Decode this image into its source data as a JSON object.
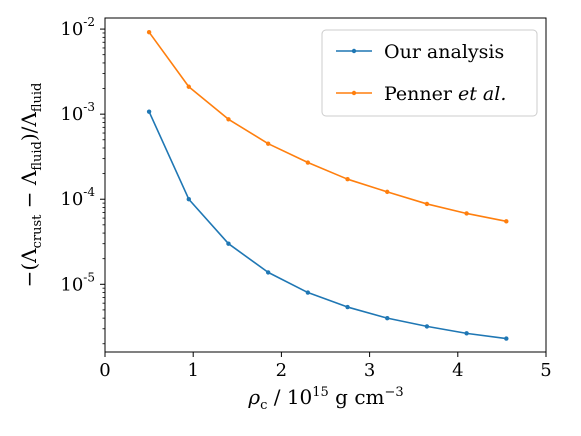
{
  "chart_data": {
    "type": "line",
    "title": "",
    "xlabel": "ρc / 10^15 g cm^-3",
    "ylabel": "−(Λcrust − Λfluid)/Λfluid",
    "xlim": [
      0,
      5
    ],
    "ylim": [
      1.6e-06,
      0.0135
    ],
    "yscale": "log",
    "grid": false,
    "legend_position": "top-right",
    "x_ticks": [
      0,
      1,
      2,
      3,
      4,
      5
    ],
    "x_tick_labels": [
      "0",
      "1",
      "2",
      "3",
      "4",
      "5"
    ],
    "y_ticks": [
      1e-05,
      0.0001,
      0.001,
      0.01
    ],
    "y_tick_exponents": [
      "-5",
      "-4",
      "-3",
      "-2"
    ],
    "x": [
      0.5,
      0.95,
      1.4,
      1.85,
      2.3,
      2.75,
      3.2,
      3.65,
      4.1,
      4.55
    ],
    "series": [
      {
        "name": "Our analysis",
        "color": "#1f77b4",
        "values": [
          0.00107,
          0.0001,
          3e-05,
          1.38e-05,
          8e-06,
          5.4e-06,
          4e-06,
          3.2e-06,
          2.65e-06,
          2.3e-06
        ]
      },
      {
        "name": "Penner et al.",
        "color": "#ff7f0e",
        "values": [
          0.0092,
          0.0021,
          0.00087,
          0.00045,
          0.00027,
          0.000172,
          0.000122,
          8.8e-05,
          6.8e-05,
          5.5e-05
        ]
      }
    ]
  }
}
